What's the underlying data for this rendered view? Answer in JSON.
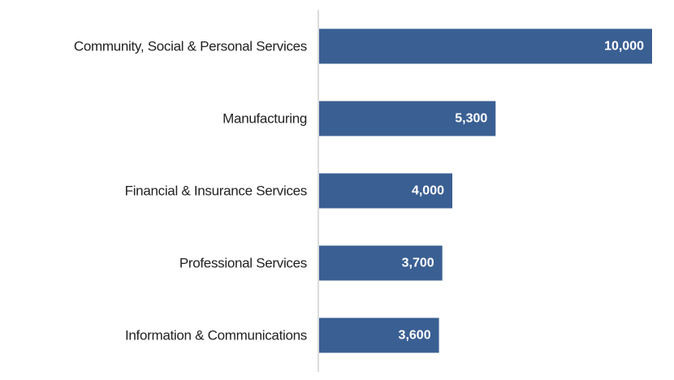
{
  "chart_data": {
    "type": "bar",
    "orientation": "horizontal",
    "categories": [
      "Community, Social & Personal Services",
      "Manufacturing",
      "Financial & Insurance Services",
      "Professional Services",
      "Information & Communications"
    ],
    "values": [
      10000,
      5300,
      4000,
      3700,
      3600
    ],
    "value_labels": [
      "10,000",
      "5,300",
      "4,000",
      "3,700",
      "3,600"
    ],
    "xlim": [
      0,
      10000
    ],
    "grid": false,
    "legend": "none",
    "colors": {
      "bar": "#3a5f93",
      "axis_line": "#d0d0d0",
      "category_text": "#222222",
      "value_text": "#ffffff"
    }
  }
}
